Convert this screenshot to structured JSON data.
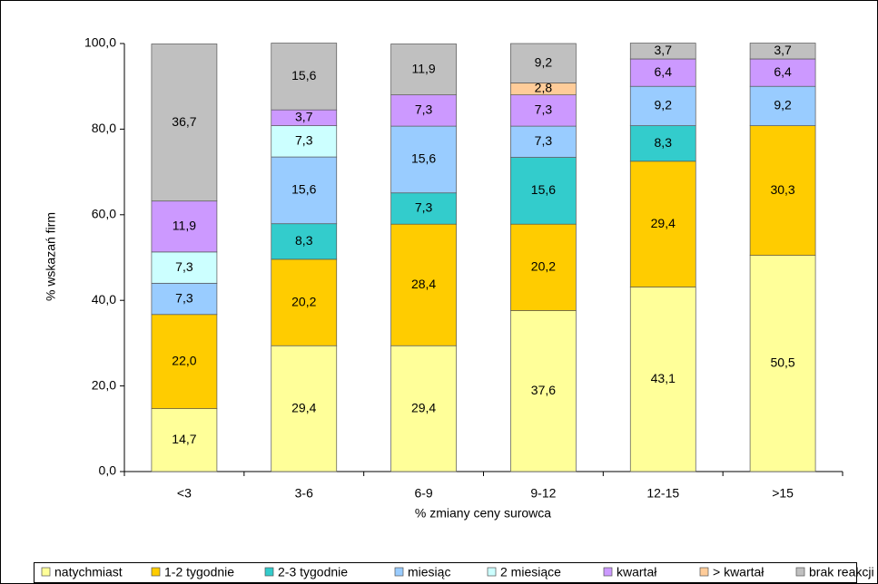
{
  "chart_data": {
    "type": "stacked_bar",
    "x_label": "% zmiany ceny surowca",
    "y_label": "% wskazań firm",
    "categories": [
      "<3",
      "3-6",
      "6-9",
      "9-12",
      "12-15",
      ">15"
    ],
    "ylim": [
      0,
      100
    ],
    "yticks": [
      {
        "value": 0,
        "label": "0,0"
      },
      {
        "value": 20,
        "label": "20,0"
      },
      {
        "value": 40,
        "label": "40,0"
      },
      {
        "value": 60,
        "label": "60,0"
      },
      {
        "value": 80,
        "label": "80,0"
      },
      {
        "value": 100,
        "label": "100,0"
      }
    ],
    "grid": false,
    "legend": "bottom",
    "series": [
      {
        "name": "natychmiast",
        "color": "#ffff99",
        "values": [
          14.7,
          29.4,
          29.4,
          37.6,
          43.1,
          50.5
        ],
        "value_labels": [
          "14,7",
          "29,4",
          "29,4",
          "37,6",
          "43,1",
          "50,5"
        ]
      },
      {
        "name": "1-2 tygodnie",
        "color": "#ffcc00",
        "values": [
          22.0,
          20.2,
          28.4,
          20.2,
          29.4,
          30.3
        ],
        "value_labels": [
          "22,0",
          "20,2",
          "28,4",
          "20,2",
          "29,4",
          "30,3"
        ]
      },
      {
        "name": "2-3 tygodnie",
        "color": "#33cccc",
        "values": [
          null,
          8.3,
          7.3,
          15.6,
          8.3,
          null
        ],
        "value_labels": [
          null,
          "8,3",
          "7,3",
          "15,6",
          "8,3",
          null
        ]
      },
      {
        "name": "miesiąc",
        "color": "#99ccff",
        "values": [
          7.3,
          15.6,
          15.6,
          7.3,
          9.2,
          9.2
        ],
        "value_labels": [
          "7,3",
          "15,6",
          "15,6",
          "7,3",
          "9,2",
          "9,2"
        ]
      },
      {
        "name": "2 miesiące",
        "color": "#ccffff",
        "values": [
          7.3,
          7.3,
          null,
          null,
          null,
          null
        ],
        "value_labels": [
          "7,3",
          "7,3",
          null,
          null,
          null,
          null
        ]
      },
      {
        "name": "kwartał",
        "color": "#cc99ff",
        "values": [
          11.9,
          3.7,
          7.3,
          7.3,
          6.4,
          6.4
        ],
        "value_labels": [
          "11,9",
          "3,7",
          "7,3",
          "7,3",
          "6,4",
          "6,4"
        ]
      },
      {
        "name": "> kwartał",
        "color": "#ffcc99",
        "values": [
          null,
          null,
          null,
          2.8,
          null,
          null
        ],
        "value_labels": [
          null,
          null,
          null,
          "2,8",
          null,
          null
        ]
      },
      {
        "name": "brak reakcji",
        "color": "#c0c0c0",
        "values": [
          36.7,
          15.6,
          11.9,
          9.2,
          3.7,
          3.7
        ],
        "value_labels": [
          "36,7",
          "15,6",
          "11,9",
          "9,2",
          "3,7",
          "3,7"
        ]
      }
    ]
  }
}
